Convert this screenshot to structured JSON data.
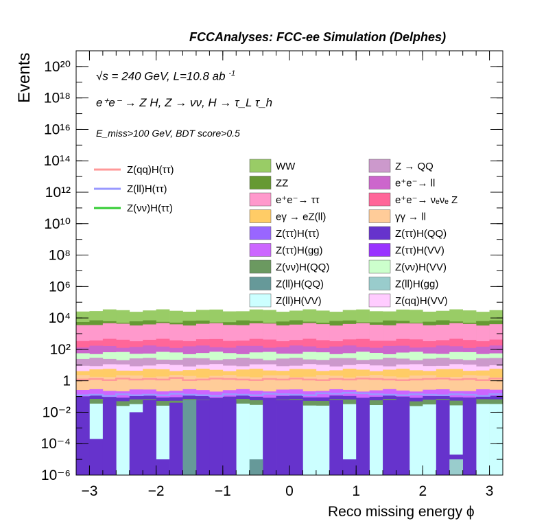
{
  "header": {
    "title": "FCCAnalyses: FCC-ee Simulation (Delphes)"
  },
  "annotations": {
    "energy_line": "√s = 240 GeV, L=10.8 ab",
    "energy_sup": "-1",
    "process_line": "e⁺e⁻ → Z H, Z → νν, H → τ_L τ_h",
    "cut_line": "E_miss>100 GeV, BDT score>0.5"
  },
  "chart_data": {
    "type": "bar",
    "stacked": true,
    "histogram": true,
    "xlabel": "Reco missing energy ϕ",
    "ylabel": "Events",
    "xlim": [
      -3.2,
      3.2
    ],
    "ylim": [
      1e-06,
      1e+21
    ],
    "yscale": "log",
    "x_ticks": [
      "−3",
      "−2",
      "−1",
      "0",
      "1",
      "2",
      "3"
    ],
    "y_ticks": [
      "10⁻⁶",
      "10⁻⁴",
      "10⁻²",
      "1",
      "10²",
      "10⁴",
      "10⁶",
      "10⁸",
      "10¹⁰",
      "10¹²",
      "10¹⁴",
      "10¹⁶",
      "10¹⁸",
      "10²⁰"
    ],
    "grid": false,
    "legend_position": "top-right",
    "bins": 32,
    "stack_levels": [
      {
        "name": "Z(ll)H(VV)",
        "color": "#ccffff",
        "value": 0.03
      },
      {
        "name": "Z(νν)H(QQ)",
        "color": "#6b9960",
        "value": 0.06
      },
      {
        "name": "Z(ττ)H(QQ)",
        "color": "#6633cc",
        "value": 0.1
      },
      {
        "name": "Z(ττ)H(gg)",
        "color": "#cc66ff",
        "value": 0.25
      },
      {
        "name": "γγ → ll",
        "color": "#ffcc99",
        "value": 2
      },
      {
        "name": "eγ → eZ(ll)",
        "color": "#ffcc66",
        "value": 5
      },
      {
        "name": "Z(qq)H(VV)",
        "color": "#ffccff",
        "value": 10
      },
      {
        "name": "Z → QQ",
        "color": "#cc99cc",
        "value": 25
      },
      {
        "name": "Z(νν)H(VV)",
        "color": "#ccffcc",
        "value": 60
      },
      {
        "name": "e⁺e⁻ → ll",
        "color": "#cc66cc",
        "value": 150
      },
      {
        "name": "e⁺e⁻ → νₑνₑ Z",
        "color": "#ff6699",
        "value": 400
      },
      {
        "name": "e⁺e⁻ → ττ",
        "color": "#ff99cc",
        "value": 4000
      },
      {
        "name": "ZZ",
        "color": "#669933",
        "value": 6000
      },
      {
        "name": "WW",
        "color": "#99cc66",
        "value": 30000
      }
    ],
    "signal_series": [
      {
        "name": "Z(qq)H(ττ)",
        "color": "#ff9999",
        "values": [
          1.2,
          1.3,
          1.1,
          1.4,
          1.2,
          1.3,
          1.2,
          1.5,
          1.1,
          1.2,
          1.4,
          1.3,
          1.2,
          1.1,
          1.3,
          1.2,
          1.4,
          1.2,
          1.1,
          1.3,
          1.2,
          1.4,
          1.3,
          1.2,
          1.1,
          1.2,
          1.3,
          1.4,
          1.2,
          1.3,
          1.1,
          1.4
        ]
      },
      {
        "name": "Z(ll)H(ττ)",
        "color": "#9999ff",
        "values": [
          0.12,
          0.13,
          0.11,
          0.14,
          0.12,
          0.13,
          0.12,
          0.15,
          0.13,
          0.12,
          0.11,
          0.14,
          0.13,
          0.12,
          0.15,
          0.14,
          0.13,
          0.12,
          0.16,
          0.15,
          0.17,
          0.16,
          0.14,
          0.13,
          0.12,
          0.14,
          0.13,
          0.12,
          0.14,
          0.13,
          0.11,
          0.14
        ]
      },
      {
        "name": "Z(νν)H(ττ)",
        "color": "#33cc33",
        "values": [
          null,
          null,
          null,
          null,
          null,
          null,
          null,
          null,
          null,
          null,
          null,
          null,
          null,
          null,
          null,
          null,
          null,
          null,
          null,
          null,
          null,
          null,
          null,
          null,
          null,
          null,
          null,
          null,
          null,
          null,
          null,
          null
        ]
      }
    ],
    "low_bins": [
      {
        "name": "Z(ττ)H(QQ)",
        "color": "#6633cc",
        "values": [
          0.08,
          0.0002,
          0.06,
          0.0,
          0.01,
          0.06,
          1e-05,
          0.04,
          0.0,
          0.06,
          0.06,
          0.06,
          0.0,
          0.0,
          0.06,
          0.06,
          0.06,
          0.0,
          0.0,
          0.06,
          1e-05,
          0.06,
          0.0,
          0.06,
          0.06,
          0.0,
          0.0,
          0.06,
          2e-05,
          0.06,
          0.0,
          1e-06
        ]
      },
      {
        "name": "Z(ll)H(QQ)",
        "color": "#669999",
        "values": [
          0.0,
          0.0,
          0.0,
          0.0,
          0.0,
          0.0,
          0.0,
          0.0,
          0.06,
          0.0,
          0.0,
          0.0,
          0.0,
          1e-05,
          0.0,
          0.0,
          0.0,
          0.0,
          0.0,
          0.0,
          0.0,
          0.0,
          0.0,
          0.0,
          0.0,
          0.0,
          0.0,
          0.0,
          0.0,
          0.0,
          0.0,
          0.0
        ]
      },
      {
        "name": "Z(ττ)H(gg)",
        "color": "#cc66ff",
        "values": [
          0.0,
          0.0,
          0.0,
          0.0,
          0.0,
          0.0,
          0.0,
          0.0,
          0.0,
          0.0,
          0.0,
          0.0,
          1e-06,
          0.0,
          0.0,
          0.0,
          0.0,
          0.0,
          0.0,
          0.0,
          0.0,
          0.0,
          0.0,
          0.0,
          0.0,
          0.0,
          0.0,
          0.0,
          0.0,
          0.0,
          0.0,
          0.0
        ]
      },
      {
        "name": "Z(ll)H(gg)",
        "color": "#99cccc",
        "values": [
          0.0,
          0.0,
          0.0,
          0.0,
          0.0,
          0.0,
          0.0,
          0.0,
          0.0,
          0.0,
          0.0,
          0.0,
          0.0,
          0.0,
          0.0,
          0.0,
          0.0,
          0.0,
          0.0,
          0.0,
          0.0,
          0.0,
          0.0,
          0.0,
          0.0,
          0.0,
          0.0,
          0.0,
          1e-05,
          0.0,
          0.0,
          0.0
        ]
      }
    ],
    "legend_left": [
      {
        "label": "Z(qq)H(ττ)",
        "color": "#ff9999"
      },
      {
        "label": "Z(ll)H(ττ)",
        "color": "#9999ff"
      },
      {
        "label": "Z(νν)H(ττ)",
        "color": "#33cc33"
      }
    ],
    "legend_fill": [
      {
        "label": "WW",
        "color": "#99cc66"
      },
      {
        "label": "Z → QQ",
        "color": "#cc99cc"
      },
      {
        "label": "ZZ",
        "color": "#669933"
      },
      {
        "label": "e⁺e⁻→ ll",
        "color": "#cc66cc"
      },
      {
        "label": "e⁺e⁻→ ττ",
        "color": "#ff99cc"
      },
      {
        "label": "e⁺e⁻→ νₑνₑ Z",
        "color": "#ff6699"
      },
      {
        "label": "eγ → eZ(ll)",
        "color": "#ffcc66"
      },
      {
        "label": "γγ → ll",
        "color": "#ffcc99"
      },
      {
        "label": "Z(ττ)H(ττ)",
        "color": "#9966ff"
      },
      {
        "label": "Z(ττ)H(QQ)",
        "color": "#6633cc"
      },
      {
        "label": "Z(ττ)H(gg)",
        "color": "#cc66ff"
      },
      {
        "label": "Z(ττ)H(VV)",
        "color": "#9933ff"
      },
      {
        "label": "Z(νν)H(QQ)",
        "color": "#6b9960"
      },
      {
        "label": "Z(νν)H(VV)",
        "color": "#ccffcc"
      },
      {
        "label": "Z(ll)H(QQ)",
        "color": "#669999"
      },
      {
        "label": "Z(ll)H(gg)",
        "color": "#99cccc"
      },
      {
        "label": "Z(ll)H(VV)",
        "color": "#ccffff"
      },
      {
        "label": "Z(qq)H(VV)",
        "color": "#ffccff"
      }
    ]
  }
}
